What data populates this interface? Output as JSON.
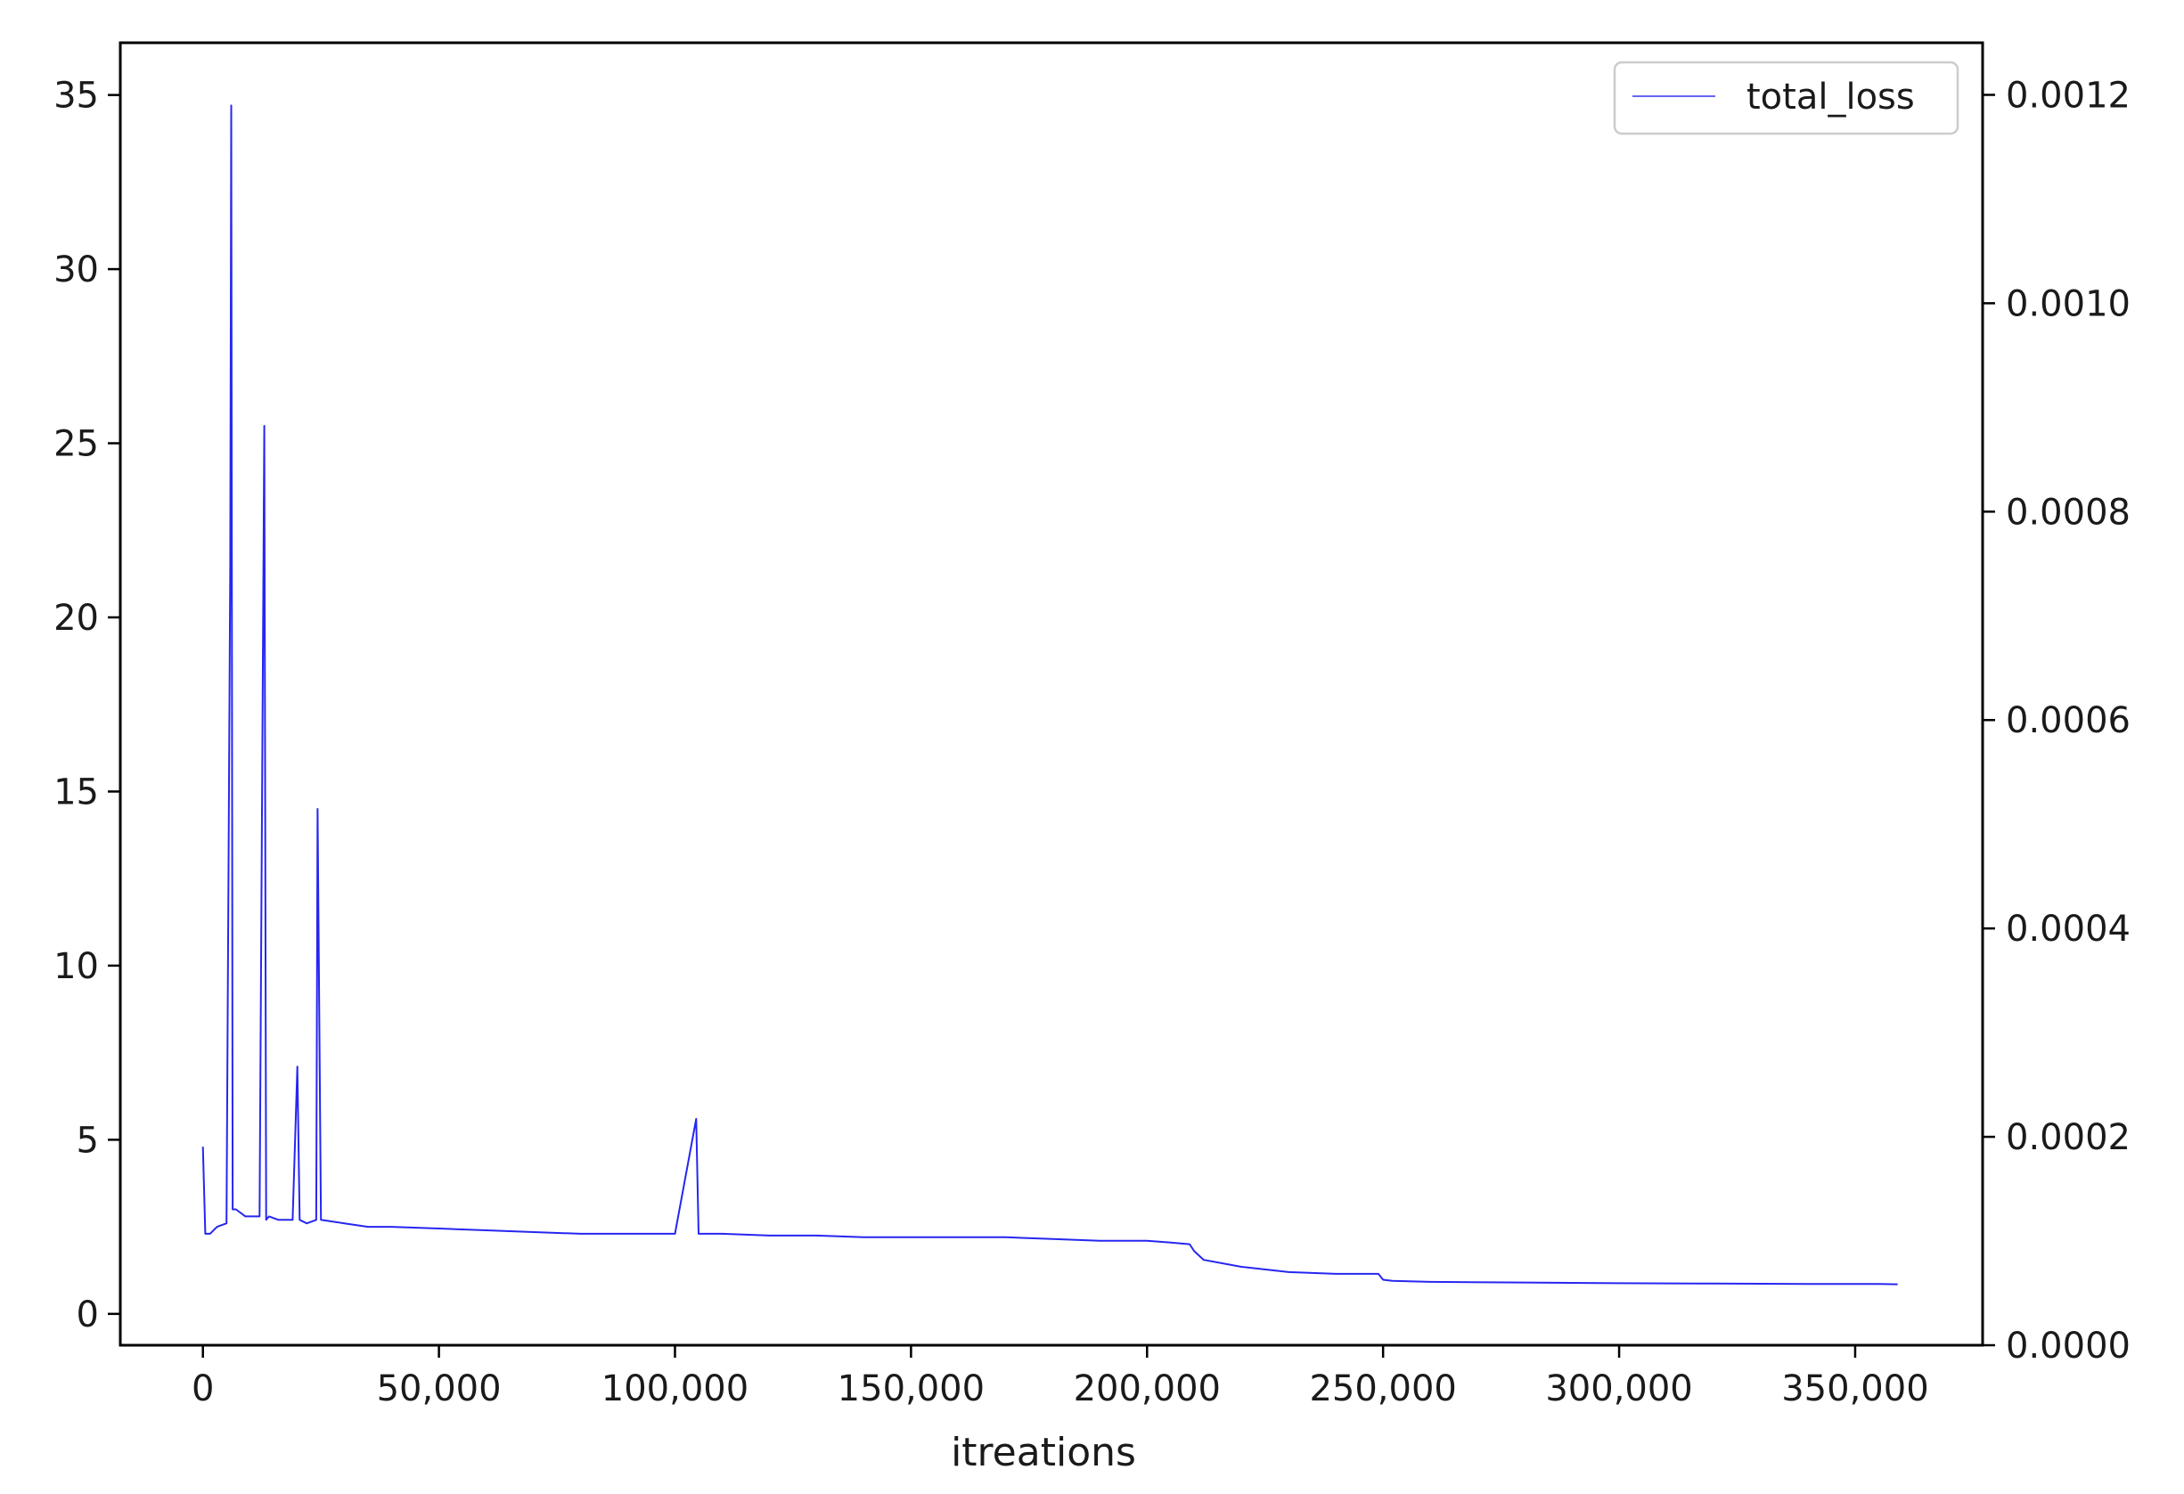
{
  "chart_data": {
    "type": "line",
    "xlabel": "itreations",
    "ylabel": "",
    "xlim": [
      -17500,
      377000
    ],
    "ylim": [
      -0.9,
      36.5
    ],
    "y2lim": [
      0.0,
      0.00125
    ],
    "x_ticks": [
      0,
      50000,
      100000,
      150000,
      200000,
      250000,
      300000,
      350000
    ],
    "x_tick_labels": [
      "0",
      "50,000",
      "100,000",
      "150,000",
      "200,000",
      "250,000",
      "300,000",
      "350,000"
    ],
    "y_ticks": [
      0,
      5,
      10,
      15,
      20,
      25,
      30,
      35
    ],
    "y_tick_labels": [
      "0",
      "5",
      "10",
      "15",
      "20",
      "25",
      "30",
      "35"
    ],
    "y2_ticks": [
      0.0,
      0.0002,
      0.0004,
      0.0006,
      0.0008,
      0.001,
      0.0012
    ],
    "y2_tick_labels": [
      "0.0000",
      "0.0002",
      "0.0004",
      "0.0006",
      "0.0008",
      "0.0010",
      "0.0012"
    ],
    "legend": {
      "position": "top-right",
      "entries": [
        "total_loss"
      ]
    },
    "grid": false,
    "series": [
      {
        "name": "total_loss",
        "color": "#0000ee",
        "x": [
          0,
          500,
          1500,
          3000,
          5000,
          5800,
          6000,
          6300,
          7000,
          9000,
          12000,
          13000,
          13400,
          14000,
          16000,
          19000,
          20000,
          20500,
          22000,
          24000,
          24300,
          25000,
          30000,
          35000,
          40000,
          50000,
          60000,
          70000,
          80000,
          90000,
          100000,
          104500,
          105000,
          110000,
          120000,
          130000,
          140000,
          150000,
          160000,
          170000,
          180000,
          190000,
          200000,
          205000,
          209000,
          210000,
          212000,
          220000,
          230000,
          240000,
          249000,
          250000,
          252000,
          260000,
          280000,
          300000,
          320000,
          340000,
          355000,
          359000
        ],
        "y": [
          4.8,
          2.3,
          2.3,
          2.5,
          2.6,
          21.5,
          34.7,
          3.0,
          3.0,
          2.8,
          2.8,
          25.5,
          2.7,
          2.8,
          2.7,
          2.7,
          7.1,
          2.7,
          2.6,
          2.7,
          14.5,
          2.7,
          2.6,
          2.5,
          2.5,
          2.45,
          2.4,
          2.35,
          2.3,
          2.3,
          2.3,
          5.6,
          2.3,
          2.3,
          2.25,
          2.25,
          2.2,
          2.2,
          2.2,
          2.2,
          2.15,
          2.1,
          2.1,
          2.05,
          2.0,
          1.8,
          1.55,
          1.35,
          1.2,
          1.15,
          1.15,
          0.98,
          0.95,
          0.92,
          0.9,
          0.88,
          0.87,
          0.86,
          0.86,
          0.85
        ]
      }
    ]
  }
}
